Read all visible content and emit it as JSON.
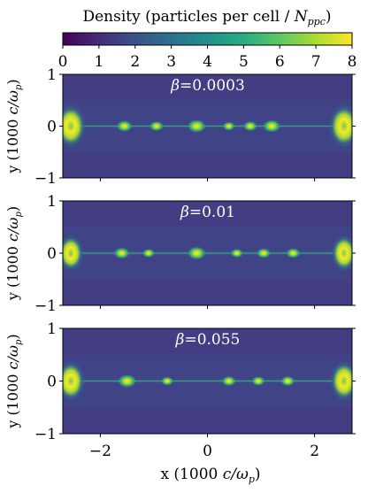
{
  "chart_data": {
    "type": "heatmap",
    "colorbar": {
      "title_main": "Density (particles per cell / ",
      "title_var": "N",
      "title_sub": "ppc",
      "title_end": ")",
      "colormap": "viridis",
      "range": [
        0,
        8
      ],
      "ticks": [
        "0",
        "1",
        "2",
        "3",
        "4",
        "5",
        "6",
        "7",
        "8"
      ],
      "orientation": "horizontal",
      "placement": "top"
    },
    "xlabel": {
      "prefix": "x (1000 ",
      "var": "c/ω",
      "sub": "p",
      "suffix": ")"
    },
    "ylabel": {
      "prefix": "y (1000 ",
      "var": "c/ω",
      "sub": "p",
      "suffix": ")"
    },
    "xlim": [
      -2.7,
      2.7
    ],
    "ylim": [
      -1,
      1
    ],
    "x_ticks": [
      "−2",
      "0",
      "2"
    ],
    "y_ticks": [
      "1",
      "0",
      "−1"
    ],
    "panels": [
      {
        "annotation": "β = 0.0003",
        "ann_sym": "β",
        "ann_val": "=0.0003",
        "end_clump_halfwidth_y": 0.42,
        "clumps": [
          {
            "x": -2.55,
            "y": 0.0,
            "dens": 8
          },
          {
            "x": -1.55,
            "y": 0.0,
            "dens": 6
          },
          {
            "x": -0.95,
            "y": 0.0,
            "dens": 5
          },
          {
            "x": -0.2,
            "y": 0.0,
            "dens": 7.5
          },
          {
            "x": 0.4,
            "y": 0.0,
            "dens": 4
          },
          {
            "x": 0.8,
            "y": 0.0,
            "dens": 5
          },
          {
            "x": 1.2,
            "y": 0.0,
            "dens": 7
          },
          {
            "x": 2.55,
            "y": 0.0,
            "dens": 8
          }
        ]
      },
      {
        "annotation": "β = 0.01",
        "ann_sym": "β",
        "ann_val": "=0.01",
        "end_clump_halfwidth_y": 0.35,
        "clumps": [
          {
            "x": -2.55,
            "y": 0.0,
            "dens": 8
          },
          {
            "x": -1.6,
            "y": 0.0,
            "dens": 6
          },
          {
            "x": -1.1,
            "y": 0.0,
            "dens": 4
          },
          {
            "x": -0.2,
            "y": 0.0,
            "dens": 7.5
          },
          {
            "x": 0.55,
            "y": 0.0,
            "dens": 4
          },
          {
            "x": 1.05,
            "y": 0.0,
            "dens": 5
          },
          {
            "x": 1.6,
            "y": 0.0,
            "dens": 5
          },
          {
            "x": 2.55,
            "y": 0.0,
            "dens": 8
          }
        ]
      },
      {
        "annotation": "β = 0.055",
        "ann_sym": "β",
        "ann_val": "=0.055",
        "end_clump_halfwidth_y": 0.38,
        "clumps": [
          {
            "x": -2.55,
            "y": 0.0,
            "dens": 8
          },
          {
            "x": -1.5,
            "y": 0.0,
            "dens": 7.5
          },
          {
            "x": -0.75,
            "y": 0.0,
            "dens": 4
          },
          {
            "x": 0.4,
            "y": 0.0,
            "dens": 5
          },
          {
            "x": 0.95,
            "y": 0.0,
            "dens": 4.5
          },
          {
            "x": 1.5,
            "y": 0.0,
            "dens": 5
          },
          {
            "x": 2.55,
            "y": 0.0,
            "dens": 8
          }
        ]
      }
    ]
  }
}
